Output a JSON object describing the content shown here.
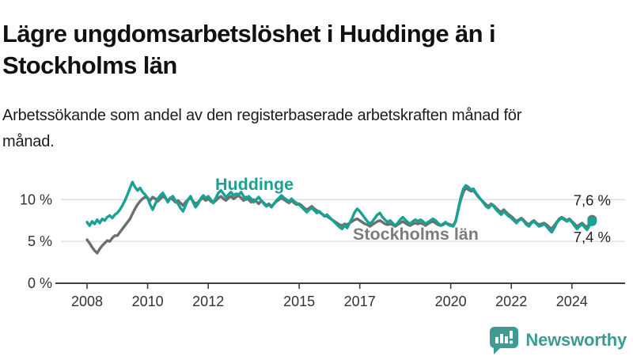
{
  "title": "Lägre ungdomsarbetslöshet i Huddinge än i Stockholms län",
  "subtitle": "Arbetssökande som andel av den registerbaserade arbetskraften månad för månad.",
  "chart_data": {
    "type": "line",
    "frequency": "monthly",
    "x_start": "2008-01",
    "x_end": "2024-09",
    "xlabel": "",
    "ylabel": "",
    "ylim": [
      0,
      13
    ],
    "grid": "horizontal",
    "gridline_color": "#dcdcdc",
    "axis_color": "#3f3f3f",
    "text_color": "#333333",
    "yticks": [
      {
        "value": 0,
        "label": "0 %"
      },
      {
        "value": 5,
        "label": "5 %"
      },
      {
        "value": 10,
        "label": "10 %"
      }
    ],
    "xticks": [
      {
        "year": 2008,
        "label": "2008"
      },
      {
        "year": 2010,
        "label": "2010"
      },
      {
        "year": 2012,
        "label": "2012"
      },
      {
        "year": 2015,
        "label": "2015"
      },
      {
        "year": 2017,
        "label": "2017"
      },
      {
        "year": 2020,
        "label": "2020"
      },
      {
        "year": 2022,
        "label": "2022"
      },
      {
        "year": 2024,
        "label": "2024"
      }
    ],
    "series": [
      {
        "name": "Stockholms län",
        "slug": "stockholms-lan",
        "color": "#6e6e6e",
        "label_color": "#7c7c7c",
        "end_value": 7.6,
        "end_label": "7,6 %",
        "end_label_position": "above",
        "values": [
          5.2,
          4.8,
          4.3,
          3.9,
          3.6,
          4.1,
          4.5,
          4.8,
          5.1,
          5.0,
          5.4,
          5.7,
          5.7,
          6.1,
          6.5,
          6.9,
          7.3,
          7.7,
          8.3,
          8.9,
          9.4,
          9.8,
          10.1,
          10.3,
          10.2,
          9.9,
          10.3,
          10.1,
          9.8,
          10.1,
          10.4,
          10.2,
          9.9,
          10.2,
          10.0,
          9.7,
          9.9,
          9.6,
          9.3,
          9.7,
          10.0,
          10.2,
          9.8,
          9.5,
          9.7,
          10.0,
          10.2,
          9.9,
          10.1,
          9.8,
          9.6,
          9.9,
          10.2,
          10.4,
          10.1,
          9.9,
          10.2,
          10.4,
          10.1,
          10.3,
          10.5,
          10.2,
          9.9,
          10.3,
          10.0,
          9.7,
          10.0,
          9.8,
          9.5,
          9.9,
          9.6,
          9.3,
          9.5,
          9.2,
          9.5,
          9.8,
          10.0,
          10.2,
          10.0,
          9.8,
          9.6,
          9.9,
          9.6,
          9.4,
          9.5,
          9.3,
          9.0,
          8.8,
          9.0,
          9.2,
          8.9,
          8.7,
          8.5,
          8.3,
          8.1,
          8.0,
          7.8,
          7.6,
          7.4,
          7.2,
          7.0,
          6.9,
          7.1,
          7.0,
          7.2,
          7.4,
          7.6,
          7.7,
          7.5,
          7.3,
          7.1,
          7.0,
          6.8,
          7.0,
          7.2,
          7.4,
          7.5,
          7.3,
          7.1,
          7.0,
          7.1,
          7.0,
          6.8,
          7.0,
          7.2,
          7.4,
          7.2,
          7.0,
          6.9,
          7.1,
          7.2,
          7.1,
          7.2,
          7.1,
          6.9,
          7.1,
          7.3,
          7.4,
          7.2,
          7.0,
          6.9,
          7.0,
          7.2,
          7.1,
          7.0,
          6.9,
          7.5,
          8.8,
          10.0,
          10.9,
          11.4,
          11.2,
          11.0,
          11.1,
          10.7,
          10.3,
          10.0,
          9.7,
          9.4,
          9.2,
          9.5,
          9.3,
          9.0,
          8.7,
          8.5,
          8.8,
          8.5,
          8.2,
          8.0,
          7.7,
          7.4,
          7.6,
          7.8,
          7.5,
          7.2,
          7.0,
          7.3,
          7.5,
          7.2,
          7.0,
          7.1,
          7.2,
          7.0,
          6.7,
          6.5,
          6.9,
          7.3,
          7.7,
          7.9,
          7.7,
          7.5,
          7.7,
          7.4,
          7.1,
          6.8,
          7.0,
          7.2,
          6.9,
          6.7,
          7.2,
          7.6
        ]
      },
      {
        "name": "Huddinge",
        "slug": "huddinge",
        "color": "#17a293",
        "label_color": "#17a293",
        "end_value": 7.4,
        "end_label": "7,4 %",
        "end_label_position": "below",
        "values": [
          7.3,
          6.9,
          7.4,
          7.1,
          7.6,
          7.2,
          7.7,
          7.5,
          7.9,
          8.1,
          7.8,
          8.2,
          8.4,
          8.8,
          9.3,
          9.9,
          10.6,
          11.4,
          12.1,
          11.5,
          11.1,
          11.4,
          10.9,
          10.6,
          10.2,
          9.4,
          8.8,
          9.5,
          10.1,
          10.5,
          10.8,
          10.3,
          9.7,
          10.2,
          10.4,
          9.9,
          9.5,
          9.0,
          8.6,
          9.3,
          10.0,
          10.4,
          9.7,
          9.1,
          9.5,
          10.1,
          10.5,
          10.2,
          10.4,
          10.0,
          9.6,
          10.2,
          10.8,
          11.1,
          10.7,
          10.3,
          10.6,
          10.9,
          10.5,
          10.7,
          10.6,
          10.9,
          10.4,
          10.0,
          10.4,
          10.1,
          9.7,
          10.0,
          10.3,
          9.9,
          9.5,
          9.2,
          9.4,
          9.1,
          9.5,
          9.9,
          10.2,
          10.5,
          10.2,
          10.0,
          9.8,
          10.1,
          9.8,
          9.6,
          9.4,
          9.1,
          8.8,
          8.5,
          8.8,
          9.0,
          8.7,
          8.4,
          8.6,
          8.3,
          8.0,
          8.2,
          7.9,
          7.6,
          7.3,
          7.0,
          6.7,
          6.5,
          6.9,
          6.6,
          7.2,
          7.8,
          8.5,
          8.9,
          8.6,
          8.2,
          7.8,
          7.4,
          7.1,
          7.4,
          7.8,
          8.2,
          8.4,
          7.9,
          7.6,
          7.3,
          7.5,
          7.2,
          6.9,
          7.2,
          7.6,
          7.9,
          7.6,
          7.3,
          7.1,
          7.4,
          7.6,
          7.4,
          7.6,
          7.4,
          7.1,
          7.3,
          7.5,
          7.7,
          7.5,
          7.2,
          6.9,
          7.1,
          7.3,
          7.0,
          6.9,
          6.8,
          7.4,
          8.9,
          10.3,
          11.3,
          11.7,
          11.5,
          11.2,
          11.3,
          10.8,
          10.4,
          10.0,
          9.6,
          9.2,
          9.0,
          9.4,
          9.2,
          8.8,
          8.5,
          8.2,
          8.6,
          8.3,
          8.0,
          7.8,
          7.5,
          7.2,
          7.5,
          7.7,
          7.4,
          7.0,
          6.8,
          7.2,
          7.4,
          7.1,
          6.8,
          6.9,
          7.1,
          6.8,
          6.4,
          6.1,
          6.6,
          7.2,
          7.6,
          7.8,
          7.6,
          7.4,
          7.6,
          7.3,
          6.9,
          6.5,
          6.8,
          7.1,
          6.7,
          6.4,
          6.9,
          7.4
        ]
      }
    ]
  },
  "logo": {
    "text": "Newsworthy",
    "color": "#3d9b94",
    "icon": "newsworthy-speech-bubble-chart-icon"
  }
}
